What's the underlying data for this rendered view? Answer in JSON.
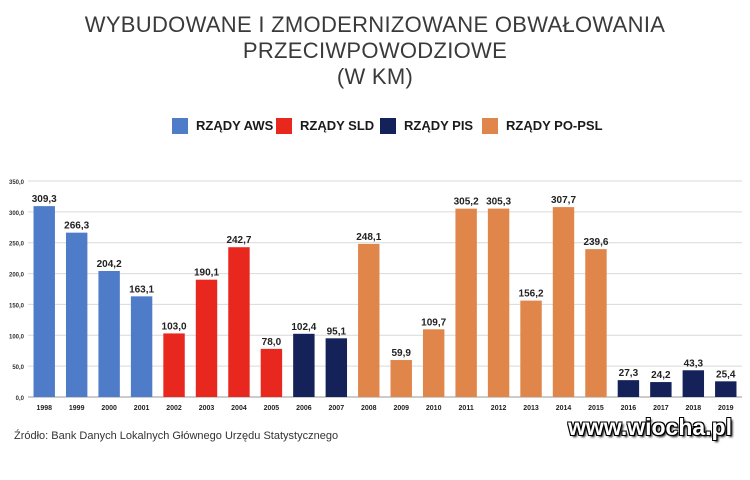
{
  "title_lines": [
    "WYBUDOWANE I ZMODERNIZOWANE OBWAŁOWANIA",
    "PRZECIWPOWODZIOWE",
    "(W KM)"
  ],
  "legend": [
    {
      "label": "RZĄDY AWS",
      "color": "#4f7cc9"
    },
    {
      "label": "RZĄDY SLD",
      "color": "#e8271f"
    },
    {
      "label": "RZĄDY PIS",
      "color": "#142259"
    },
    {
      "label": "RZĄDY PO-PSL",
      "color": "#e0864a"
    }
  ],
  "chart_data": {
    "type": "bar",
    "title": "WYBUDOWANE I ZMODERNIZOWANE OBWAŁOWANIA PRZECIWPOWODZIOWE (W KM)",
    "categories": [
      "1998",
      "1999",
      "2000",
      "2001",
      "2002",
      "2003",
      "2004",
      "2005",
      "2006",
      "2007",
      "2008",
      "2009",
      "2010",
      "2011",
      "2012",
      "2013",
      "2014",
      "2015",
      "2016",
      "2017",
      "2018",
      "2019"
    ],
    "values": [
      309.3,
      266.3,
      204.2,
      163.1,
      103.0,
      190.1,
      242.7,
      78.0,
      102.4,
      95.1,
      248.1,
      59.9,
      109.7,
      305.2,
      305.3,
      156.2,
      307.7,
      239.6,
      27.3,
      24.2,
      43.3,
      25.4
    ],
    "value_labels": [
      "309,3",
      "266,3",
      "204,2",
      "163,1",
      "103,0",
      "190,1",
      "242,7",
      "78,0",
      "102,4",
      "95,1",
      "248,1",
      "59,9",
      "109,7",
      "305,2",
      "305,3",
      "156,2",
      "307,7",
      "239,6",
      "27,3",
      "24,2",
      "43,3",
      "25,4"
    ],
    "bar_group": [
      "RZĄDY AWS",
      "RZĄDY AWS",
      "RZĄDY AWS",
      "RZĄDY AWS",
      "RZĄDY SLD",
      "RZĄDY SLD",
      "RZĄDY SLD",
      "RZĄDY SLD",
      "RZĄDY PIS",
      "RZĄDY PIS",
      "RZĄDY PO-PSL",
      "RZĄDY PO-PSL",
      "RZĄDY PO-PSL",
      "RZĄDY PO-PSL",
      "RZĄDY PO-PSL",
      "RZĄDY PO-PSL",
      "RZĄDY PO-PSL",
      "RZĄDY PO-PSL",
      "RZĄDY PIS",
      "RZĄDY PIS",
      "RZĄDY PIS",
      "RZĄDY PIS"
    ],
    "y_ticks": [
      0,
      50,
      100,
      150,
      200,
      250,
      300,
      350
    ],
    "y_tick_labels": [
      "0,0",
      "50,0",
      "100,0",
      "150,0",
      "200,0",
      "250,0",
      "300,0",
      "350,0"
    ],
    "ylim": [
      0,
      350
    ],
    "grid": true,
    "legend_position": "top"
  },
  "source": "Źródło: Bank Danych Lokalnych Głównego Urzędu Statystycznego",
  "watermark": "www.wiocha.pl"
}
